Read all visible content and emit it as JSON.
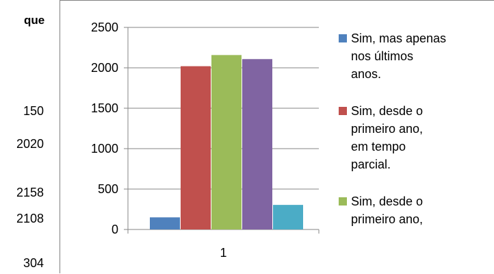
{
  "fragments": {
    "top_word": "que",
    "numbers": [
      "150",
      "2020",
      "2158",
      "2108",
      "304"
    ]
  },
  "chart_data": {
    "type": "bar",
    "categories": [
      "1"
    ],
    "series": [
      {
        "name": "Sim, mas apenas nos últimos anos.",
        "values": [
          150
        ],
        "color": "#4f81bd"
      },
      {
        "name": "Sim, desde o primeiro ano, em tempo parcial.",
        "values": [
          2020
        ],
        "color": "#c0504d"
      },
      {
        "name": "Sim, desde o primeiro ano,",
        "values": [
          2158
        ],
        "color": "#9bbb59"
      },
      {
        "name": "",
        "values": [
          2108
        ],
        "color": "#8064a2"
      },
      {
        "name": "",
        "values": [
          304
        ],
        "color": "#4bacc6"
      }
    ],
    "ylim": [
      0,
      2500
    ],
    "yticks": [
      0,
      500,
      1000,
      1500,
      2000,
      2500
    ],
    "grid": true,
    "legend_position": "right",
    "legend_lines": [
      [
        "Sim, mas apenas",
        "nos últimos",
        "anos."
      ],
      [
        "Sim, desde o",
        "primeiro ano,",
        "em tempo",
        "parcial."
      ],
      [
        "Sim, desde o",
        "primeiro ano,"
      ]
    ]
  }
}
